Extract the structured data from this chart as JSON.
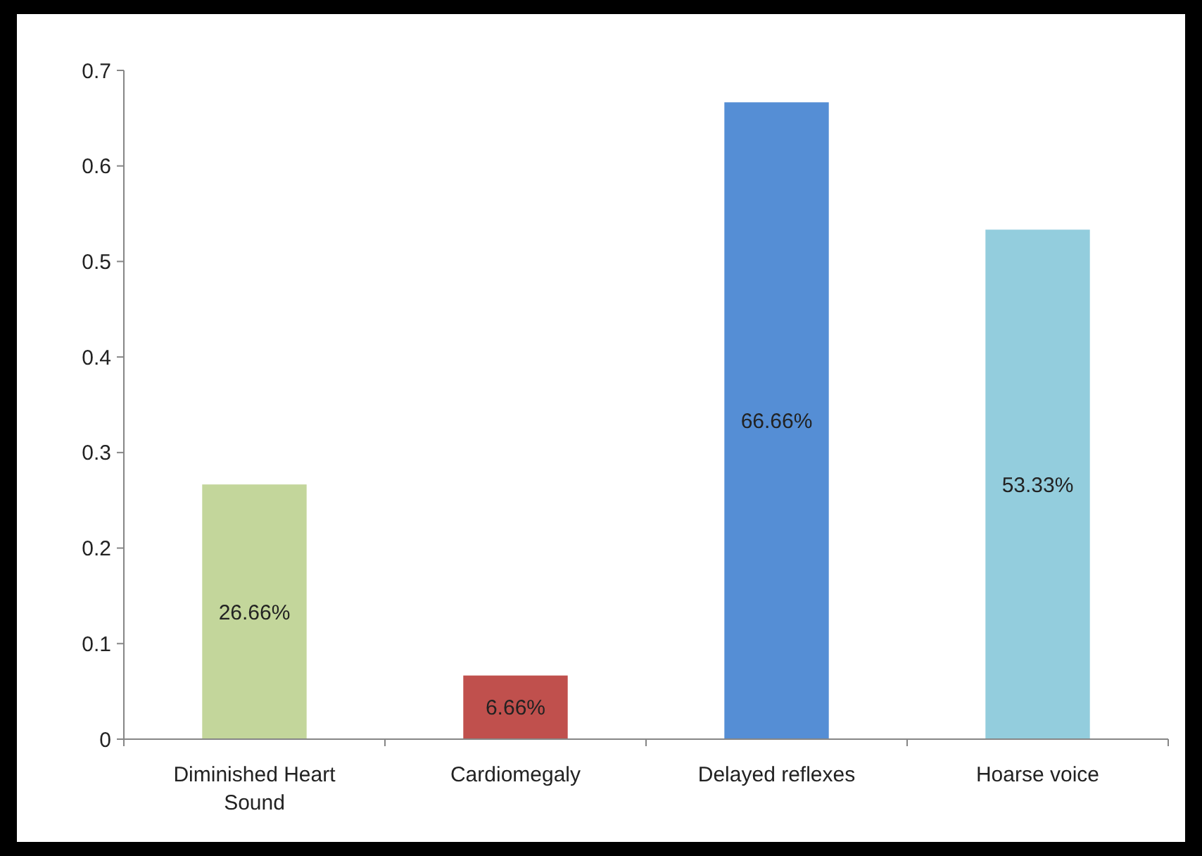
{
  "chart_data": {
    "type": "bar",
    "categories": [
      "Diminished Heart Sound",
      "Cardiomegaly",
      "Delayed reflexes",
      "Hoarse voice"
    ],
    "values": [
      0.2666,
      0.0666,
      0.6666,
      0.5333
    ],
    "colors": [
      "#c3d69b",
      "#c0504d",
      "#558ed5",
      "#93cddd"
    ],
    "value_labels": [
      "26.66%",
      "6.66%",
      "66.66%",
      "53.33%"
    ],
    "ylim": [
      0,
      0.7
    ],
    "yticks": [
      0,
      0.1,
      0.2,
      0.3,
      0.4,
      0.5,
      0.6,
      0.7
    ]
  }
}
